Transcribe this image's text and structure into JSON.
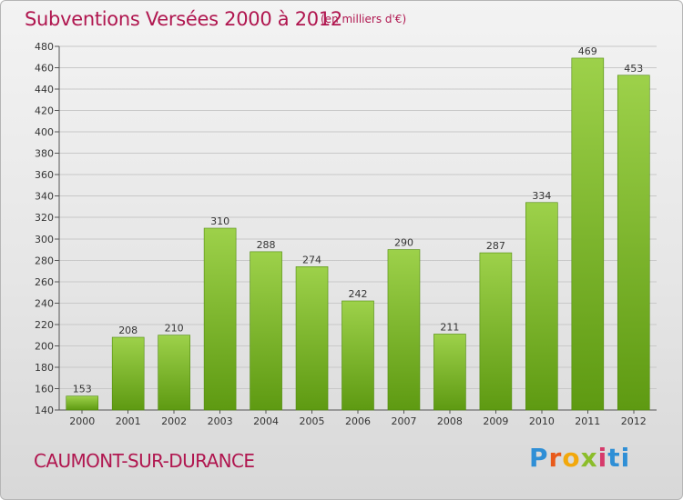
{
  "chart_data": {
    "type": "bar",
    "title": "Subventions Versées 2000 à 2012",
    "subtitle": "(en milliers d'€)",
    "commune": "CAUMONT-SUR-DURANCE",
    "logo": "Proxiti",
    "categories": [
      "2000",
      "2001",
      "2002",
      "2003",
      "2004",
      "2005",
      "2006",
      "2007",
      "2008",
      "2009",
      "2010",
      "2011",
      "2012"
    ],
    "values": [
      153,
      208,
      210,
      310,
      288,
      274,
      242,
      290,
      211,
      287,
      334,
      469,
      453
    ],
    "ylim": [
      140,
      480
    ],
    "yticks": [
      140,
      160,
      180,
      200,
      220,
      240,
      260,
      280,
      300,
      320,
      340,
      360,
      380,
      400,
      420,
      440,
      460,
      480
    ],
    "grid": true,
    "colors": {
      "bar_light": "#9dd14a",
      "bar_dark": "#5e9a12",
      "title": "#b0164f",
      "grid": "#c8c8c8",
      "axis": "#555555",
      "text": "#333333"
    }
  }
}
